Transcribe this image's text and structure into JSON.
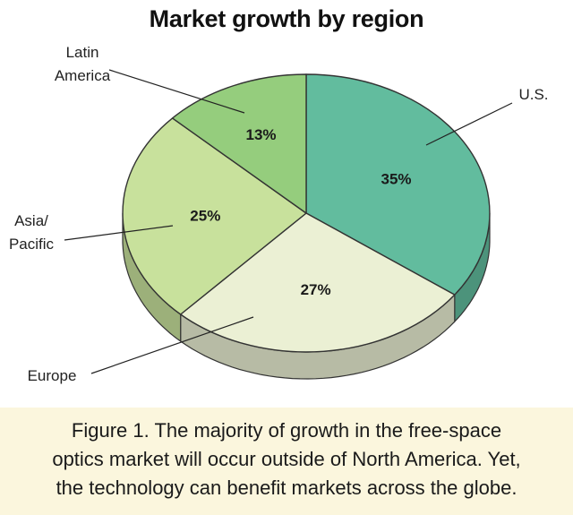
{
  "chart_data": {
    "type": "pie",
    "title": "Market growth by region",
    "slices": [
      {
        "label": "U.S.",
        "value": 35,
        "value_label": "35%",
        "color": "#62bc9e"
      },
      {
        "label": "Europe",
        "value": 27,
        "value_label": "27%",
        "color": "#ebf0d4"
      },
      {
        "label": "Asia/ Pacific",
        "value": 25,
        "value_label": "25%",
        "color": "#c8e19c"
      },
      {
        "label": "Latin America",
        "value": 13,
        "value_label": "13%",
        "color": "#95cd7d"
      }
    ],
    "style": "3d"
  },
  "caption": {
    "line1": "Figure 1. The majority of growth in the free-space",
    "line2": "optics market will occur outside of North America. Yet,",
    "line3": "the technology can benefit markets across the globe."
  }
}
